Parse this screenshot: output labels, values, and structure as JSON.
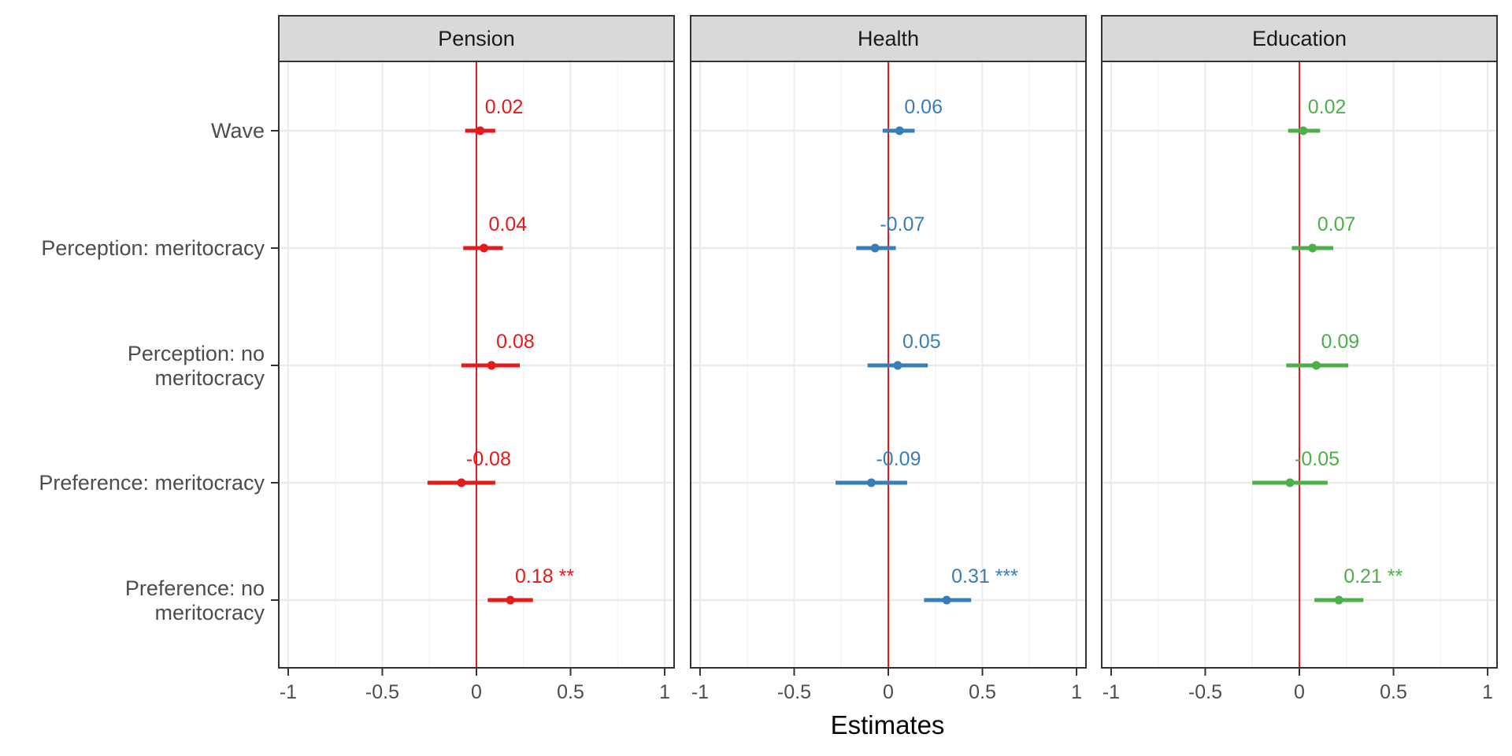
{
  "chart_data": {
    "type": "forest",
    "xlabel": "Estimates",
    "xlim": [
      -1.05,
      1.05
    ],
    "x_ticks": [
      -1,
      -0.5,
      0,
      0.5,
      1
    ],
    "x_tick_labels": [
      "-1",
      "-0.5",
      "0",
      "0.5",
      "1"
    ],
    "reference_line": 0,
    "reference_line_color": "#e41a1c",
    "grid": true,
    "terms": [
      [
        "Wave"
      ],
      [
        "Perception: meritocracy"
      ],
      [
        "Perception: no",
        "meritocracy"
      ],
      [
        "Preference: meritocracy"
      ],
      [
        "Preference: no",
        "meritocracy"
      ]
    ],
    "panels": [
      {
        "title": "Pension",
        "color": "#e41a1c",
        "estimates": [
          0.02,
          0.04,
          0.08,
          -0.08,
          0.18
        ],
        "ci_low": [
          -0.06,
          -0.07,
          -0.08,
          -0.26,
          0.06
        ],
        "ci_high": [
          0.1,
          0.14,
          0.23,
          0.1,
          0.3
        ],
        "labels": [
          "0.02",
          "0.04",
          "0.08",
          "-0.08",
          "0.18 **"
        ]
      },
      {
        "title": "Health",
        "color": "#377eb8",
        "estimates": [
          0.06,
          -0.07,
          0.05,
          -0.09,
          0.31
        ],
        "ci_low": [
          -0.03,
          -0.17,
          -0.11,
          -0.28,
          0.19
        ],
        "ci_high": [
          0.14,
          0.04,
          0.21,
          0.1,
          0.44
        ],
        "labels": [
          "0.06",
          "-0.07",
          "0.05",
          "-0.09",
          "0.31 ***"
        ]
      },
      {
        "title": "Education",
        "color": "#4daf4a",
        "estimates": [
          0.02,
          0.07,
          0.09,
          -0.05,
          0.21
        ],
        "ci_low": [
          -0.06,
          -0.04,
          -0.07,
          -0.25,
          0.08
        ],
        "ci_high": [
          0.11,
          0.18,
          0.26,
          0.15,
          0.34
        ],
        "labels": [
          "0.02",
          "0.07",
          "0.09",
          "-0.05",
          "0.21 **"
        ]
      }
    ]
  }
}
